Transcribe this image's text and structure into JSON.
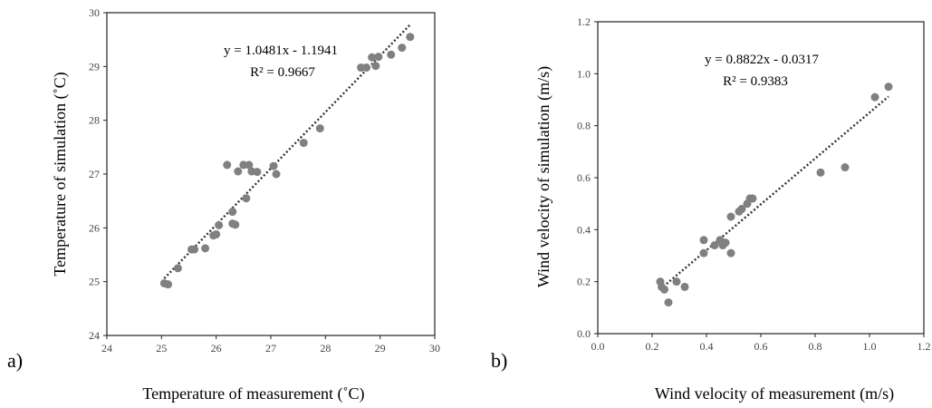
{
  "chart_data": [
    {
      "type": "scatter",
      "panel_label": "a)",
      "xlabel": "Temperature of measurement (˚C)",
      "ylabel": "Temperature of simulation (˚C)",
      "xlim": [
        24,
        30
      ],
      "ylim": [
        24,
        30
      ],
      "xticks": [
        "24",
        "25",
        "26",
        "27",
        "28",
        "29",
        "30"
      ],
      "yticks": [
        "24",
        "25",
        "26",
        "27",
        "28",
        "29",
        "30"
      ],
      "equation": "y = 1.0481x - 1.1941",
      "r2": "R² = 0.9667",
      "trendline": {
        "slope": 1.0481,
        "intercept": -1.1941,
        "x_range": [
          25.05,
          29.55
        ]
      },
      "grid": false,
      "points": [
        {
          "x": 25.05,
          "y": 24.97
        },
        {
          "x": 25.12,
          "y": 24.95
        },
        {
          "x": 25.3,
          "y": 25.25
        },
        {
          "x": 25.55,
          "y": 25.6
        },
        {
          "x": 25.6,
          "y": 25.6
        },
        {
          "x": 25.8,
          "y": 25.62
        },
        {
          "x": 25.95,
          "y": 25.86
        },
        {
          "x": 26.0,
          "y": 25.88
        },
        {
          "x": 26.05,
          "y": 26.05
        },
        {
          "x": 26.3,
          "y": 26.3
        },
        {
          "x": 26.3,
          "y": 26.08
        },
        {
          "x": 26.35,
          "y": 26.06
        },
        {
          "x": 26.55,
          "y": 26.55
        },
        {
          "x": 26.2,
          "y": 27.17
        },
        {
          "x": 26.4,
          "y": 27.05
        },
        {
          "x": 26.5,
          "y": 27.17
        },
        {
          "x": 26.6,
          "y": 27.17
        },
        {
          "x": 26.65,
          "y": 27.05
        },
        {
          "x": 26.75,
          "y": 27.04
        },
        {
          "x": 27.05,
          "y": 27.15
        },
        {
          "x": 27.1,
          "y": 27.0
        },
        {
          "x": 27.6,
          "y": 27.58
        },
        {
          "x": 27.9,
          "y": 27.85
        },
        {
          "x": 28.65,
          "y": 28.98
        },
        {
          "x": 28.75,
          "y": 28.98
        },
        {
          "x": 28.85,
          "y": 29.17
        },
        {
          "x": 28.92,
          "y": 29.01
        },
        {
          "x": 28.97,
          "y": 29.18
        },
        {
          "x": 29.2,
          "y": 29.22
        },
        {
          "x": 29.4,
          "y": 29.35
        },
        {
          "x": 29.55,
          "y": 29.55
        }
      ]
    },
    {
      "type": "scatter",
      "panel_label": "b)",
      "xlabel": "Wind velocity of measurement (m/s)",
      "ylabel": "Wind velocity of simulation (m/s)",
      "xlim": [
        0.0,
        1.2
      ],
      "ylim": [
        0.0,
        1.2
      ],
      "xticks": [
        "0.0",
        "0.2",
        "0.4",
        "0.6",
        "0.8",
        "1.0",
        "1.2"
      ],
      "yticks": [
        "0.0",
        "0.2",
        "0.4",
        "0.6",
        "0.8",
        "1.0",
        "1.2"
      ],
      "equation": "y = 0.8822x - 0.0317",
      "r2": "R² = 0.9383",
      "trendline": {
        "slope": 0.8822,
        "intercept": -0.0317,
        "x_range": [
          0.23,
          1.07
        ]
      },
      "grid": false,
      "points": [
        {
          "x": 0.23,
          "y": 0.2
        },
        {
          "x": 0.235,
          "y": 0.18
        },
        {
          "x": 0.245,
          "y": 0.17
        },
        {
          "x": 0.26,
          "y": 0.12
        },
        {
          "x": 0.29,
          "y": 0.2
        },
        {
          "x": 0.32,
          "y": 0.18
        },
        {
          "x": 0.39,
          "y": 0.36
        },
        {
          "x": 0.39,
          "y": 0.31
        },
        {
          "x": 0.43,
          "y": 0.34
        },
        {
          "x": 0.45,
          "y": 0.36
        },
        {
          "x": 0.46,
          "y": 0.34
        },
        {
          "x": 0.47,
          "y": 0.35
        },
        {
          "x": 0.49,
          "y": 0.45
        },
        {
          "x": 0.49,
          "y": 0.31
        },
        {
          "x": 0.52,
          "y": 0.47
        },
        {
          "x": 0.53,
          "y": 0.48
        },
        {
          "x": 0.55,
          "y": 0.5
        },
        {
          "x": 0.56,
          "y": 0.52
        },
        {
          "x": 0.57,
          "y": 0.52
        },
        {
          "x": 0.82,
          "y": 0.62
        },
        {
          "x": 0.91,
          "y": 0.64
        },
        {
          "x": 1.02,
          "y": 0.91
        },
        {
          "x": 1.07,
          "y": 0.95
        }
      ]
    }
  ]
}
